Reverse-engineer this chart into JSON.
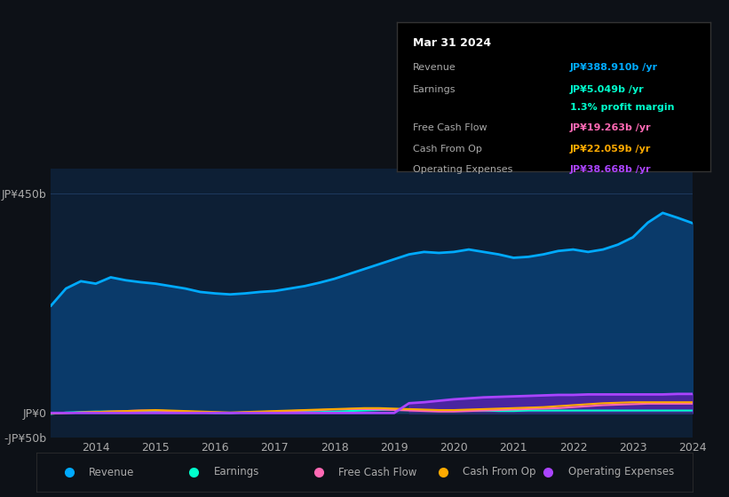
{
  "background_color": "#0d1117",
  "plot_bg_color": "#0d1f35",
  "grid_color": "#1e3a5f",
  "text_color": "#aaaaaa",
  "title_color": "#ffffff",
  "years": [
    2013.25,
    2013.5,
    2013.75,
    2014.0,
    2014.25,
    2014.5,
    2014.75,
    2015.0,
    2015.25,
    2015.5,
    2015.75,
    2016.0,
    2016.25,
    2016.5,
    2016.75,
    2017.0,
    2017.25,
    2017.5,
    2017.75,
    2018.0,
    2018.25,
    2018.5,
    2018.75,
    2019.0,
    2019.25,
    2019.5,
    2019.75,
    2020.0,
    2020.25,
    2020.5,
    2020.75,
    2021.0,
    2021.25,
    2021.5,
    2021.75,
    2022.0,
    2022.25,
    2022.5,
    2022.75,
    2023.0,
    2023.25,
    2023.5,
    2023.75,
    2024.0
  ],
  "revenue": [
    220,
    255,
    270,
    265,
    278,
    272,
    268,
    265,
    260,
    255,
    248,
    245,
    243,
    245,
    248,
    250,
    255,
    260,
    267,
    275,
    285,
    295,
    305,
    315,
    325,
    330,
    328,
    330,
    335,
    330,
    325,
    318,
    320,
    325,
    332,
    335,
    330,
    335,
    345,
    360,
    390,
    410,
    400,
    389
  ],
  "earnings": [
    -2,
    1,
    2,
    3,
    3,
    2,
    2,
    2,
    1,
    1,
    1,
    0,
    0,
    1,
    1,
    1,
    2,
    2,
    2,
    3,
    4,
    5,
    6,
    7,
    7,
    6,
    5,
    5,
    5,
    5,
    4,
    4,
    5,
    5,
    5,
    5,
    5,
    5,
    5,
    5,
    5,
    5,
    5,
    5
  ],
  "free_cash_flow": [
    -1,
    0,
    1,
    2,
    3,
    4,
    5,
    5,
    4,
    3,
    2,
    1,
    0,
    1,
    2,
    3,
    4,
    5,
    6,
    7,
    8,
    8,
    7,
    6,
    5,
    4,
    3,
    3,
    4,
    5,
    6,
    7,
    8,
    9,
    10,
    12,
    14,
    16,
    17,
    18,
    19,
    19,
    19,
    19
  ],
  "cash_from_op": [
    -1,
    0,
    1,
    2,
    3,
    4,
    5,
    6,
    5,
    4,
    3,
    2,
    1,
    2,
    3,
    4,
    5,
    6,
    7,
    8,
    9,
    10,
    10,
    9,
    8,
    7,
    6,
    6,
    7,
    8,
    9,
    10,
    11,
    12,
    14,
    16,
    18,
    20,
    21,
    22,
    22,
    22,
    22,
    22
  ],
  "operating_expenses": [
    0,
    0,
    0,
    0,
    0,
    0,
    0,
    0,
    0,
    0,
    0,
    0,
    0,
    0,
    0,
    0,
    0,
    0,
    0,
    0,
    0,
    0,
    0,
    0,
    20,
    22,
    25,
    28,
    30,
    32,
    33,
    34,
    35,
    36,
    37,
    37,
    38,
    38,
    38,
    38,
    38,
    38,
    39,
    39
  ],
  "revenue_color": "#00aaff",
  "earnings_color": "#00ffcc",
  "free_cash_flow_color": "#ff69b4",
  "cash_from_op_color": "#ffaa00",
  "operating_expenses_color": "#aa44ff",
  "revenue_fill": "#0a3a6a",
  "operating_expenses_fill": "#5522aa",
  "ylim": [
    -50,
    500
  ],
  "yticks": [
    -50,
    0,
    450
  ],
  "ytick_labels": [
    "-JP¥50b",
    "JP¥0",
    "JP¥450b"
  ],
  "xticks": [
    2014,
    2015,
    2016,
    2017,
    2018,
    2019,
    2020,
    2021,
    2022,
    2023,
    2024
  ],
  "xlabel_color": "#cccccc",
  "tooltip_title": "Mar 31 2024",
  "tooltip_bg": "#000000",
  "tooltip_border": "#333333",
  "tooltip_items": [
    {
      "label": "Revenue",
      "value": "JP¥388.910b /yr",
      "color": "#00aaff"
    },
    {
      "label": "Earnings",
      "value": "JP¥5.049b /yr",
      "color": "#00ffcc"
    },
    {
      "label": "",
      "value": "1.3% profit margin",
      "color": "#00ffcc"
    },
    {
      "label": "Free Cash Flow",
      "value": "JP¥19.263b /yr",
      "color": "#ff69b4"
    },
    {
      "label": "Cash From Op",
      "value": "JP¥22.059b /yr",
      "color": "#ffaa00"
    },
    {
      "label": "Operating Expenses",
      "value": "JP¥38.668b /yr",
      "color": "#aa44ff"
    }
  ],
  "legend_items": [
    {
      "label": "Revenue",
      "color": "#00aaff"
    },
    {
      "label": "Earnings",
      "color": "#00ffcc"
    },
    {
      "label": "Free Cash Flow",
      "color": "#ff69b4"
    },
    {
      "label": "Cash From Op",
      "color": "#ffaa00"
    },
    {
      "label": "Operating Expenses",
      "color": "#aa44ff"
    }
  ]
}
